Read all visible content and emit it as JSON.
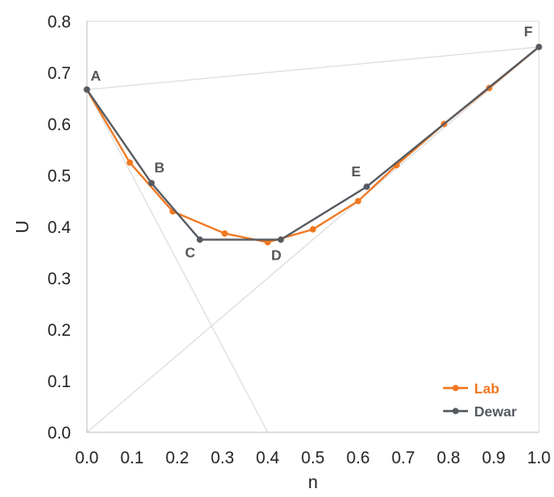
{
  "chart_data": {
    "type": "line",
    "xlabel": "n",
    "ylabel": "U",
    "xlim": [
      0.0,
      1.0
    ],
    "ylim": [
      0.0,
      0.8
    ],
    "x_ticks": [
      "0.0",
      "0.1",
      "0.2",
      "0.3",
      "0.4",
      "0.5",
      "0.6",
      "0.7",
      "0.8",
      "0.9",
      "1.0"
    ],
    "y_ticks": [
      "0.0",
      "0.1",
      "0.2",
      "0.3",
      "0.4",
      "0.5",
      "0.6",
      "0.7",
      "0.8"
    ],
    "grid": false,
    "legend_position": "bottom-right",
    "series": [
      {
        "name": "Lab",
        "color": "#f07820",
        "x": [
          0.0,
          0.095,
          0.19,
          0.305,
          0.4,
          0.5,
          0.6,
          0.685,
          0.79,
          0.89,
          1.0
        ],
        "y": [
          0.667,
          0.525,
          0.43,
          0.387,
          0.37,
          0.395,
          0.45,
          0.52,
          0.6,
          0.67,
          0.75
        ]
      },
      {
        "name": "Dewar",
        "color": "#555a60",
        "x": [
          0.0,
          0.143,
          0.25,
          0.429,
          0.619,
          1.0
        ],
        "y": [
          0.667,
          0.485,
          0.375,
          0.375,
          0.478,
          0.75
        ]
      }
    ],
    "reference_lines": [
      {
        "x": [
          0.0,
          1.0
        ],
        "y": [
          0.667,
          0.75
        ]
      },
      {
        "x": [
          0.0,
          0.4
        ],
        "y": [
          0.667,
          0.0
        ]
      },
      {
        "x": [
          0.0,
          1.0
        ],
        "y": [
          0.0,
          0.75
        ]
      }
    ],
    "annotations": [
      {
        "text": "A",
        "x": 0.0,
        "y": 0.667
      },
      {
        "text": "B",
        "x": 0.143,
        "y": 0.485
      },
      {
        "text": "C",
        "x": 0.25,
        "y": 0.375
      },
      {
        "text": "D",
        "x": 0.429,
        "y": 0.375
      },
      {
        "text": "E",
        "x": 0.619,
        "y": 0.478
      },
      {
        "text": "F",
        "x": 1.0,
        "y": 0.75
      }
    ]
  }
}
